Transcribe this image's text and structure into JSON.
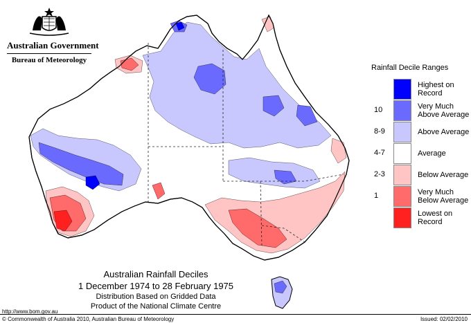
{
  "header": {
    "government": "Australian Government",
    "bureau": "Bureau of Meteorology"
  },
  "legend": {
    "title": "Rainfall Decile Ranges",
    "items": [
      {
        "code": "",
        "label": "Highest on Record",
        "color": "#0000ff"
      },
      {
        "code": "10",
        "label": "Very Much Above Average",
        "color": "#6a6aff"
      },
      {
        "code": "8-9",
        "label": "Above Average",
        "color": "#c8c8ff"
      },
      {
        "code": "4-7",
        "label": "Average",
        "color": "#ffffff"
      },
      {
        "code": "2-3",
        "label": "Below Average",
        "color": "#ffc4c4"
      },
      {
        "code": "1",
        "label": "Very Much Below Average",
        "color": "#ff6a6a"
      },
      {
        "code": "",
        "label": "Lowest on Record",
        "color": "#ff2020"
      }
    ]
  },
  "caption": {
    "title": "Australian Rainfall Deciles",
    "period": "1 December 1974 to 28 February 1975",
    "method": "Distribution Based on Gridded Data",
    "product": "Product of the National Climate Centre"
  },
  "footer": {
    "url": "http://www.bom.gov.au",
    "copyright": "© Commonwealth of Australia 2010, Australian Bureau of Meteorology",
    "issued": "Issued: 02/02/2010"
  },
  "map": {
    "outline_color": "#222222",
    "coastline_color": "#000000"
  }
}
